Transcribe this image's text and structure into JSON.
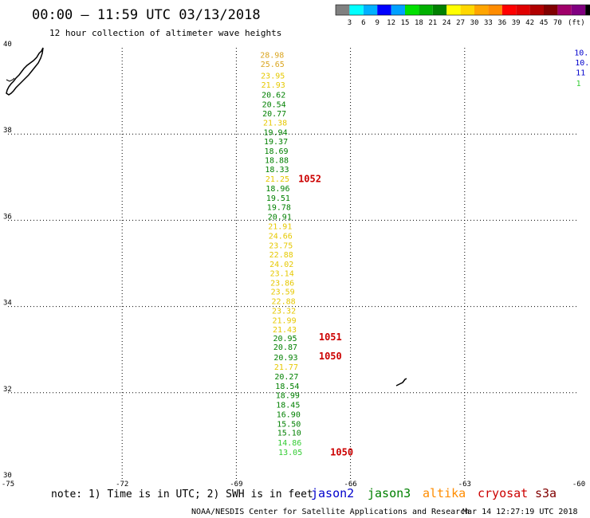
{
  "header": {
    "title": "00:00 – 11:59 UTC 03/13/2018",
    "subtitle": "12 hour collection of altimeter wave heights"
  },
  "legend": {
    "colors": [
      "#808080",
      "#00ffff",
      "#00b0ff",
      "#0000ff",
      "#00a0ff",
      "#00e000",
      "#00b000",
      "#008000",
      "#ffff00",
      "#ffd700",
      "#ffa500",
      "#ff8c00",
      "#ff0000",
      "#e00000",
      "#b00000",
      "#800000",
      "#a0006a",
      "#800080",
      "#000000"
    ],
    "labels": [
      "3",
      "6",
      "9",
      "12",
      "15",
      "18",
      "21",
      "24",
      "27",
      "30",
      "33",
      "36",
      "39",
      "42",
      "45",
      "70",
      "(ft)"
    ]
  },
  "chart_data": {
    "type": "scatter",
    "title": "12 hour collection of altimeter wave heights",
    "xlabel": "",
    "ylabel": "",
    "xlim": [
      -75,
      -60
    ],
    "ylim": [
      30,
      40
    ],
    "x_ticks": [
      "-75",
      "-72",
      "-69",
      "-66",
      "-63",
      "-60"
    ],
    "y_ticks": [
      "40",
      "38",
      "36",
      "34",
      "32",
      "30"
    ],
    "grid": true,
    "units": "ft",
    "points": [
      {
        "lon": -68.06,
        "lat": 39.82,
        "value": "28.98",
        "color": "#daa520"
      },
      {
        "lon": -68.05,
        "lat": 39.61,
        "value": "25.65",
        "color": "#daa520"
      },
      {
        "lon": -68.04,
        "lat": 39.34,
        "value": "23.95",
        "color": "#e6c800"
      },
      {
        "lon": -68.03,
        "lat": 39.13,
        "value": "21.93",
        "color": "#e6c800"
      },
      {
        "lon": -68.02,
        "lat": 38.9,
        "value": "20.62",
        "color": "#008000"
      },
      {
        "lon": -68.01,
        "lat": 38.68,
        "value": "20.54",
        "color": "#008000"
      },
      {
        "lon": -68.0,
        "lat": 38.47,
        "value": "20.77",
        "color": "#008000"
      },
      {
        "lon": -67.98,
        "lat": 38.25,
        "value": "21.38",
        "color": "#e6c800"
      },
      {
        "lon": -67.97,
        "lat": 38.03,
        "value": "19.94",
        "color": "#008000"
      },
      {
        "lon": -67.96,
        "lat": 37.82,
        "value": "19.37",
        "color": "#008000"
      },
      {
        "lon": -67.95,
        "lat": 37.6,
        "value": "18.69",
        "color": "#008000"
      },
      {
        "lon": -67.94,
        "lat": 37.38,
        "value": "18.88",
        "color": "#008000"
      },
      {
        "lon": -67.93,
        "lat": 37.17,
        "value": "18.33",
        "color": "#008000"
      },
      {
        "lon": -67.92,
        "lat": 36.95,
        "value": "21.25",
        "color": "#e6c800"
      },
      {
        "lon": -67.91,
        "lat": 36.73,
        "value": "18.96",
        "color": "#008000"
      },
      {
        "lon": -67.9,
        "lat": 36.51,
        "value": "19.51",
        "color": "#008000"
      },
      {
        "lon": -67.88,
        "lat": 36.29,
        "value": "19.78",
        "color": "#008000"
      },
      {
        "lon": -67.86,
        "lat": 36.07,
        "value": "20.91",
        "color": "#008000"
      },
      {
        "lon": -67.85,
        "lat": 35.85,
        "value": "21.91",
        "color": "#e6c800"
      },
      {
        "lon": -67.84,
        "lat": 35.63,
        "value": "24.66",
        "color": "#e6c800"
      },
      {
        "lon": -67.83,
        "lat": 35.41,
        "value": "23.75",
        "color": "#e6c800"
      },
      {
        "lon": -67.82,
        "lat": 35.19,
        "value": "22.88",
        "color": "#e6c800"
      },
      {
        "lon": -67.81,
        "lat": 34.97,
        "value": "24.02",
        "color": "#e6c800"
      },
      {
        "lon": -67.8,
        "lat": 34.76,
        "value": "23.14",
        "color": "#e6c800"
      },
      {
        "lon": -67.79,
        "lat": 34.54,
        "value": "23.86",
        "color": "#e6c800"
      },
      {
        "lon": -67.78,
        "lat": 34.33,
        "value": "23.59",
        "color": "#e6c800"
      },
      {
        "lon": -67.76,
        "lat": 34.11,
        "value": "22.88",
        "color": "#e6c800"
      },
      {
        "lon": -67.75,
        "lat": 33.89,
        "value": "23.32",
        "color": "#e6c800"
      },
      {
        "lon": -67.74,
        "lat": 33.67,
        "value": "21.99",
        "color": "#e6c800"
      },
      {
        "lon": -67.73,
        "lat": 33.46,
        "value": "21.43",
        "color": "#e6c800"
      },
      {
        "lon": -67.72,
        "lat": 33.25,
        "value": "20.95",
        "color": "#008000"
      },
      {
        "lon": -67.71,
        "lat": 33.05,
        "value": "20.87",
        "color": "#008000"
      },
      {
        "lon": -67.7,
        "lat": 32.81,
        "value": "20.93",
        "color": "#008000"
      },
      {
        "lon": -67.69,
        "lat": 32.59,
        "value": "21.77",
        "color": "#e6c800"
      },
      {
        "lon": -67.68,
        "lat": 32.37,
        "value": "20.27",
        "color": "#008000"
      },
      {
        "lon": -67.66,
        "lat": 32.14,
        "value": "18.54",
        "color": "#008000"
      },
      {
        "lon": -67.65,
        "lat": 31.93,
        "value": "18.99",
        "color": "#008000"
      },
      {
        "lon": -67.64,
        "lat": 31.71,
        "value": "18.45",
        "color": "#008000"
      },
      {
        "lon": -67.63,
        "lat": 31.49,
        "value": "16.90",
        "color": "#008000"
      },
      {
        "lon": -67.62,
        "lat": 31.27,
        "value": "15.50",
        "color": "#008000"
      },
      {
        "lon": -67.61,
        "lat": 31.06,
        "value": "15.10",
        "color": "#008000"
      },
      {
        "lon": -67.6,
        "lat": 30.83,
        "value": "14.86",
        "color": "#33cc33"
      },
      {
        "lon": -67.58,
        "lat": 30.61,
        "value": "13.05",
        "color": "#33cc33"
      }
    ],
    "edge_points": [
      {
        "lon": -60.12,
        "lat": 39.88,
        "value": "10.",
        "color": "#0000cc"
      },
      {
        "lon": -60.1,
        "lat": 39.65,
        "value": "10.",
        "color": "#0000cc"
      },
      {
        "lon": -60.08,
        "lat": 39.42,
        "value": "11",
        "color": "#0000cc"
      },
      {
        "lon": -60.07,
        "lat": 39.17,
        "value": "1",
        "color": "#33cc33"
      }
    ],
    "track_labels": [
      {
        "lon": -67.07,
        "lat": 36.95,
        "text": "1052"
      },
      {
        "lon": -66.53,
        "lat": 33.28,
        "text": "1051"
      },
      {
        "lon": -66.53,
        "lat": 32.84,
        "text": "1050"
      },
      {
        "lon": -66.23,
        "lat": 30.61,
        "text": "1050"
      }
    ]
  },
  "notes": {
    "text": "note: 1) Time is in UTC; 2) SWH is in feet"
  },
  "satellites": [
    {
      "name": "jason2",
      "color": "#0000cc"
    },
    {
      "name": "jason3",
      "color": "#008000"
    },
    {
      "name": "altika",
      "color": "#ff8c00"
    },
    {
      "name": "cryosat",
      "color": "#cc0000"
    },
    {
      "name": "s3a",
      "color": "#800000"
    }
  ],
  "footer": {
    "credit": "NOAA/NESDIS Center for Satellite Applications and Research",
    "timestamp": "Mar 14 12:27:19 UTC 2018"
  }
}
